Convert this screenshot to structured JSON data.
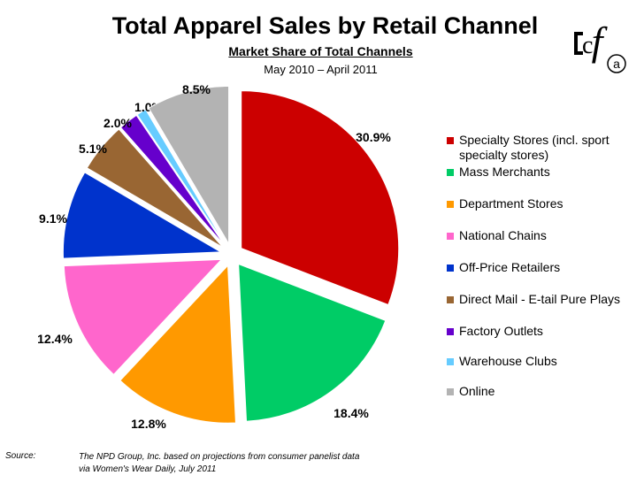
{
  "title": "Total Apparel Sales by Retail Channel",
  "subtitle": "Market Share of Total Channels",
  "date_range": "May 2010 – April 2011",
  "source": {
    "label": "Source:",
    "line1": "The NPD Group, Inc. based on projections from consumer panelist data",
    "line2": "via Women's Wear Daily, July 2011"
  },
  "logo": {
    "text": "cfa",
    "icon": "cfa-logo-icon"
  },
  "chart_data": {
    "type": "pie",
    "title": "Total Apparel Sales by Retail Channel",
    "subtitle": "Market Share of Total Channels",
    "legend_position": "right",
    "slices": [
      {
        "name": "Specialty Stores (incl. sport specialty stores)",
        "legend_lines": [
          "Specialty Stores (incl. sport",
          "specialty stores)"
        ],
        "value": 30.9,
        "label": "30.9%",
        "color": "#cc0000"
      },
      {
        "name": "Mass Merchants",
        "legend_lines": [
          "Mass Merchants"
        ],
        "value": 18.4,
        "label": "18.4%",
        "color": "#00cc66"
      },
      {
        "name": "Department Stores",
        "legend_lines": [
          "Department Stores"
        ],
        "value": 12.8,
        "label": "12.8%",
        "color": "#ff9900"
      },
      {
        "name": "National Chains",
        "legend_lines": [
          "National Chains"
        ],
        "value": 12.4,
        "label": "12.4%",
        "color": "#ff66cc"
      },
      {
        "name": "Off-Price Retailers",
        "legend_lines": [
          "Off-Price Retailers"
        ],
        "value": 9.1,
        "label": "9.1%",
        "color": "#0033cc"
      },
      {
        "name": "Direct Mail - E-tail Pure Plays",
        "legend_lines": [
          "Direct Mail - E-tail Pure Plays"
        ],
        "value": 5.1,
        "label": "5.1%",
        "color": "#996633"
      },
      {
        "name": "Factory Outlets",
        "legend_lines": [
          "Factory Outlets"
        ],
        "value": 2.0,
        "label": "2.0%",
        "color": "#6600cc"
      },
      {
        "name": "Warehouse Clubs",
        "legend_lines": [
          "Warehouse Clubs"
        ],
        "value": 1.0,
        "label": "1.0%",
        "color": "#66ccff"
      },
      {
        "name": "Online",
        "legend_lines": [
          "Online"
        ],
        "value": 8.5,
        "label": "8.5%",
        "color": "#b3b3b3"
      }
    ]
  }
}
